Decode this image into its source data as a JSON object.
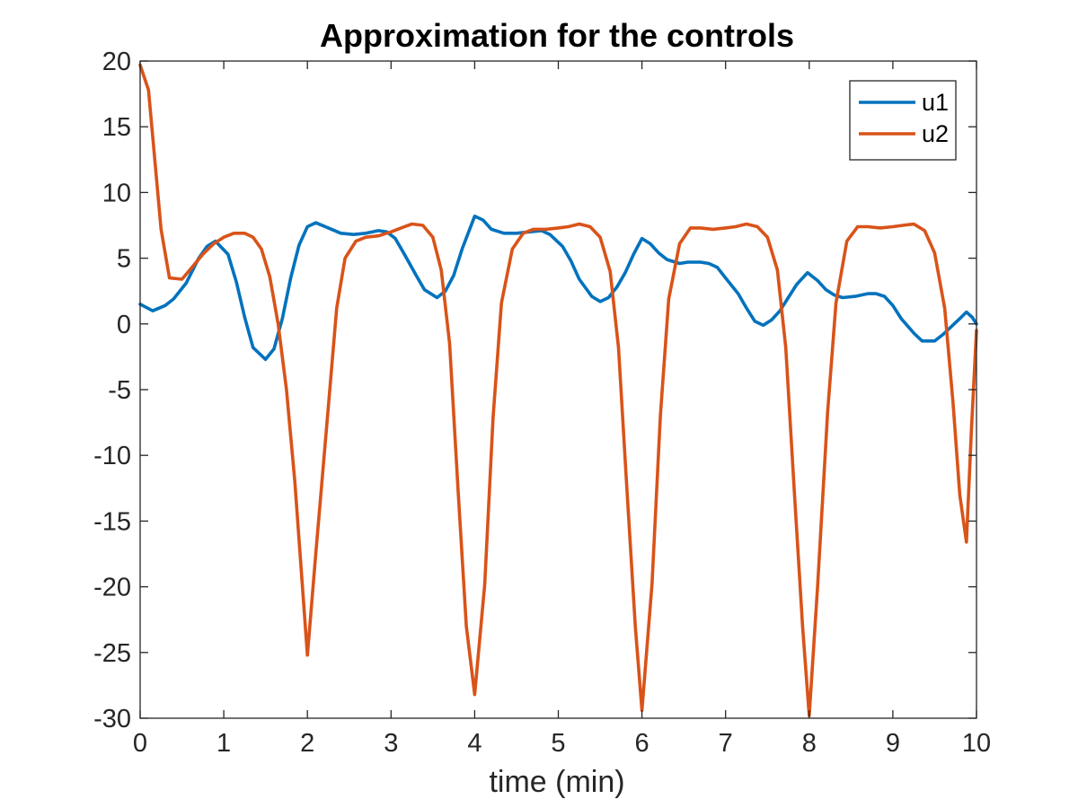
{
  "chart_data": {
    "type": "line",
    "title": "Approximation for the controls",
    "xlabel": "time (min)",
    "ylabel": "",
    "xlim": [
      0,
      10
    ],
    "ylim": [
      -30,
      20
    ],
    "x_ticks": [
      0,
      1,
      2,
      3,
      4,
      5,
      6,
      7,
      8,
      9,
      10
    ],
    "x_tick_labels": [
      "0",
      "1",
      "2",
      "3",
      "4",
      "5",
      "6",
      "7",
      "8",
      "9",
      "10"
    ],
    "y_ticks": [
      20,
      15,
      10,
      5,
      0,
      -5,
      -10,
      -15,
      -20,
      -25,
      -30
    ],
    "y_tick_labels": [
      "20",
      "15",
      "10",
      "5",
      "0",
      "-5",
      "-10",
      "-15",
      "-20",
      "-25",
      "-30"
    ],
    "grid": false,
    "box": true,
    "legend_position": "top-right",
    "series": [
      {
        "name": "u1",
        "color": "#0072bd",
        "points": [
          [
            0,
            1.5
          ],
          [
            0.15,
            1
          ],
          [
            0.3,
            1.4
          ],
          [
            0.4,
            1.9
          ],
          [
            0.55,
            3.1
          ],
          [
            0.7,
            5
          ],
          [
            0.8,
            5.9
          ],
          [
            0.9,
            6.3
          ],
          [
            1.05,
            5.3
          ],
          [
            1.15,
            3.2
          ],
          [
            1.25,
            0.5
          ],
          [
            1.35,
            -1.8
          ],
          [
            1.5,
            -2.7
          ],
          [
            1.6,
            -1.9
          ],
          [
            1.7,
            0.4
          ],
          [
            1.8,
            3.5
          ],
          [
            1.9,
            6
          ],
          [
            2,
            7.4
          ],
          [
            2.1,
            7.7
          ],
          [
            2.25,
            7.3
          ],
          [
            2.4,
            6.9
          ],
          [
            2.55,
            6.8
          ],
          [
            2.7,
            6.9
          ],
          [
            2.85,
            7.1
          ],
          [
            2.95,
            7
          ],
          [
            3.05,
            6.5
          ],
          [
            3.15,
            5.4
          ],
          [
            3.3,
            3.7
          ],
          [
            3.4,
            2.6
          ],
          [
            3.55,
            2
          ],
          [
            3.65,
            2.5
          ],
          [
            3.75,
            3.7
          ],
          [
            3.85,
            5.7
          ],
          [
            4,
            8.2
          ],
          [
            4.1,
            7.9
          ],
          [
            4.2,
            7.2
          ],
          [
            4.35,
            6.9
          ],
          [
            4.5,
            6.9
          ],
          [
            4.65,
            7
          ],
          [
            4.8,
            7.1
          ],
          [
            4.9,
            6.8
          ],
          [
            5.05,
            5.9
          ],
          [
            5.15,
            4.8
          ],
          [
            5.25,
            3.4
          ],
          [
            5.4,
            2.1
          ],
          [
            5.5,
            1.7
          ],
          [
            5.6,
            2
          ],
          [
            5.7,
            2.8
          ],
          [
            5.8,
            3.9
          ],
          [
            5.9,
            5.3
          ],
          [
            6,
            6.5
          ],
          [
            6.1,
            6.1
          ],
          [
            6.2,
            5.4
          ],
          [
            6.3,
            4.9
          ],
          [
            6.45,
            4.6
          ],
          [
            6.55,
            4.7
          ],
          [
            6.7,
            4.7
          ],
          [
            6.8,
            4.6
          ],
          [
            6.9,
            4.3
          ],
          [
            7,
            3.5
          ],
          [
            7.15,
            2.3
          ],
          [
            7.25,
            1.2
          ],
          [
            7.35,
            0.2
          ],
          [
            7.45,
            -0.1
          ],
          [
            7.55,
            0.3
          ],
          [
            7.65,
            1
          ],
          [
            7.75,
            2
          ],
          [
            7.85,
            3
          ],
          [
            7.98,
            3.9
          ],
          [
            8.1,
            3.3
          ],
          [
            8.2,
            2.6
          ],
          [
            8.3,
            2.2
          ],
          [
            8.4,
            2
          ],
          [
            8.55,
            2.1
          ],
          [
            8.7,
            2.3
          ],
          [
            8.8,
            2.3
          ],
          [
            8.9,
            2.1
          ],
          [
            9,
            1.4
          ],
          [
            9.1,
            0.4
          ],
          [
            9.25,
            -0.7
          ],
          [
            9.35,
            -1.3
          ],
          [
            9.5,
            -1.3
          ],
          [
            9.6,
            -0.8
          ],
          [
            9.7,
            -0.2
          ],
          [
            9.8,
            0.4
          ],
          [
            9.88,
            0.9
          ],
          [
            9.95,
            0.5
          ],
          [
            10,
            0
          ]
        ]
      },
      {
        "name": "u2",
        "color": "#d95319",
        "points": [
          [
            0,
            19.7
          ],
          [
            0.1,
            17.8
          ],
          [
            0.25,
            7.2
          ],
          [
            0.35,
            3.5
          ],
          [
            0.5,
            3.4
          ],
          [
            0.62,
            4.3
          ],
          [
            0.75,
            5.3
          ],
          [
            0.88,
            6.1
          ],
          [
            1,
            6.6
          ],
          [
            1.12,
            6.9
          ],
          [
            1.25,
            6.9
          ],
          [
            1.35,
            6.6
          ],
          [
            1.45,
            5.7
          ],
          [
            1.55,
            3.6
          ],
          [
            1.65,
            0
          ],
          [
            1.75,
            -5
          ],
          [
            1.85,
            -12
          ],
          [
            2,
            -25.2
          ],
          [
            2.1,
            -17.5
          ],
          [
            2.25,
            -6.3
          ],
          [
            2.35,
            1.2
          ],
          [
            2.45,
            5
          ],
          [
            2.58,
            6.3
          ],
          [
            2.7,
            6.6
          ],
          [
            2.85,
            6.7
          ],
          [
            3,
            7
          ],
          [
            3.12,
            7.3
          ],
          [
            3.25,
            7.6
          ],
          [
            3.38,
            7.5
          ],
          [
            3.5,
            6.6
          ],
          [
            3.6,
            4.1
          ],
          [
            3.7,
            -1.5
          ],
          [
            3.8,
            -12.5
          ],
          [
            3.9,
            -23
          ],
          [
            4,
            -28.2
          ],
          [
            4.12,
            -19.8
          ],
          [
            4.22,
            -7.1
          ],
          [
            4.32,
            1.6
          ],
          [
            4.45,
            5.7
          ],
          [
            4.58,
            6.9
          ],
          [
            4.7,
            7.2
          ],
          [
            4.85,
            7.2
          ],
          [
            5,
            7.3
          ],
          [
            5.12,
            7.4
          ],
          [
            5.25,
            7.6
          ],
          [
            5.38,
            7.4
          ],
          [
            5.5,
            6.6
          ],
          [
            5.62,
            4
          ],
          [
            5.72,
            -1.8
          ],
          [
            5.82,
            -12.5
          ],
          [
            5.92,
            -23
          ],
          [
            6,
            -29.4
          ],
          [
            6.12,
            -19.8
          ],
          [
            6.22,
            -7
          ],
          [
            6.32,
            1.9
          ],
          [
            6.45,
            6.1
          ],
          [
            6.58,
            7.3
          ],
          [
            6.7,
            7.3
          ],
          [
            6.85,
            7.2
          ],
          [
            7,
            7.3
          ],
          [
            7.12,
            7.4
          ],
          [
            7.25,
            7.6
          ],
          [
            7.38,
            7.4
          ],
          [
            7.5,
            6.6
          ],
          [
            7.62,
            4.1
          ],
          [
            7.72,
            -1.8
          ],
          [
            7.82,
            -12.5
          ],
          [
            7.92,
            -23
          ],
          [
            8,
            -29.8
          ],
          [
            8.1,
            -20
          ],
          [
            8.22,
            -6.7
          ],
          [
            8.32,
            1.6
          ],
          [
            8.45,
            6.3
          ],
          [
            8.58,
            7.4
          ],
          [
            8.7,
            7.4
          ],
          [
            8.85,
            7.3
          ],
          [
            9,
            7.4
          ],
          [
            9.12,
            7.5
          ],
          [
            9.25,
            7.6
          ],
          [
            9.38,
            7.1
          ],
          [
            9.5,
            5.4
          ],
          [
            9.62,
            1.2
          ],
          [
            9.72,
            -6
          ],
          [
            9.8,
            -13
          ],
          [
            9.88,
            -16.6
          ],
          [
            9.94,
            -8
          ],
          [
            10,
            -0.5
          ]
        ]
      }
    ]
  }
}
